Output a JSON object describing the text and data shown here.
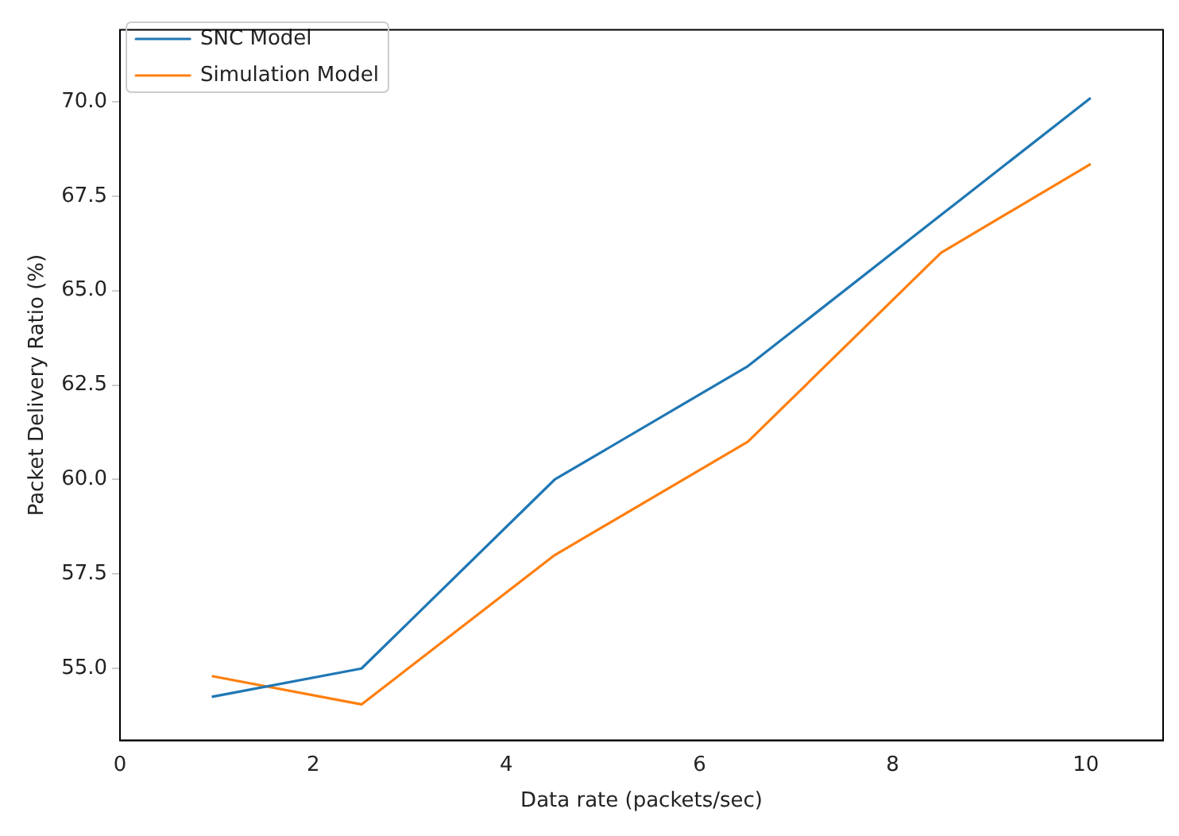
{
  "chart_data": {
    "type": "line",
    "xlabel": "Data rate (packets/sec)",
    "ylabel": "Packet Delivery Ratio (%)",
    "x": [
      0.95,
      2.5,
      4.5,
      6.5,
      8.5,
      10.05
    ],
    "series": [
      {
        "name": "SNC Model",
        "color": "#1f77b4",
        "values": [
          54.25,
          55,
          60,
          63,
          67,
          70.1
        ]
      },
      {
        "name": "Simulation Model",
        "color": "#ff7f0e",
        "values": [
          54.8,
          54.05,
          58,
          61,
          66,
          68.35
        ]
      }
    ],
    "xlim": [
      0,
      10.8
    ],
    "xticks": [
      0,
      2,
      4,
      6,
      8,
      10
    ],
    "ylim": [
      53.1,
      71.9
    ],
    "yticks": [
      {
        "value": 55,
        "label": "55.0"
      },
      {
        "value": 57.5,
        "label": "57.5"
      },
      {
        "value": 60,
        "label": "60.0"
      },
      {
        "value": 62.5,
        "label": "62.5"
      },
      {
        "value": 65,
        "label": "65.0"
      },
      {
        "value": 67.5,
        "label": "67.5"
      },
      {
        "value": 70,
        "label": "70.0"
      }
    ],
    "grid": false,
    "legend": "top left",
    "marker": "none",
    "line_style": "solid"
  }
}
